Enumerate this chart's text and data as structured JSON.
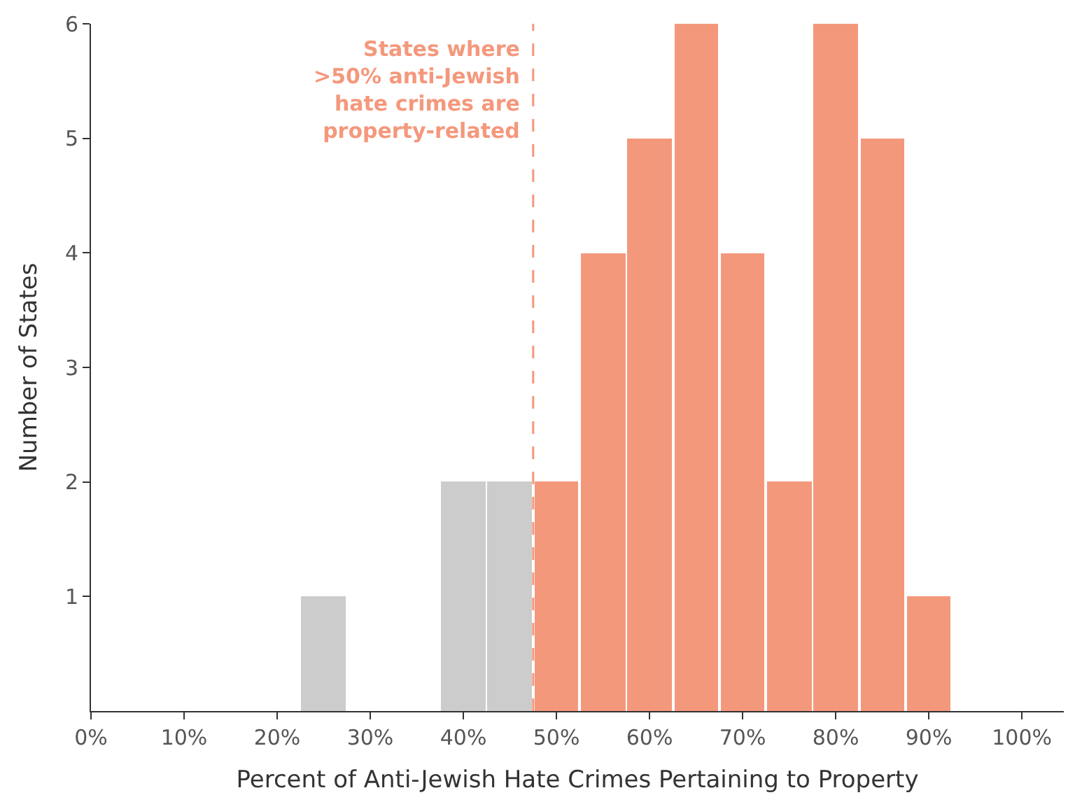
{
  "chart_data": {
    "type": "histogram",
    "xlabel": "Percent of Anti-Jewish Hate Crimes Pertaining to Property",
    "ylabel": "Number of States",
    "bins": [
      22.5,
      27.5,
      32.5,
      37.5,
      42.5,
      47.5,
      52.5,
      57.5,
      62.5,
      67.5,
      72.5,
      77.5,
      82.5,
      87.5,
      92.5
    ],
    "values": [
      1,
      0,
      0,
      2,
      2,
      2,
      4,
      5,
      6,
      4,
      2,
      6,
      5,
      1
    ],
    "colors": [
      "#cccccc",
      "#cccccc",
      "#cccccc",
      "#cccccc",
      "#cccccc",
      "#f4987c",
      "#f4987c",
      "#f4987c",
      "#f4987c",
      "#f4987c",
      "#f4987c",
      "#f4987c",
      "#f4987c",
      "#f4987c"
    ],
    "xlim": [
      0,
      104.5
    ],
    "xticks": [
      {
        "value": 0,
        "label": "0%"
      },
      {
        "value": 10,
        "label": "10%"
      },
      {
        "value": 20,
        "label": "20%"
      },
      {
        "value": 30,
        "label": "30%"
      },
      {
        "value": 40,
        "label": "40%"
      },
      {
        "value": 50,
        "label": "50%"
      },
      {
        "value": 60,
        "label": "60%"
      },
      {
        "value": 70,
        "label": "70%"
      },
      {
        "value": 80,
        "label": "80%"
      },
      {
        "value": 90,
        "label": "90%"
      },
      {
        "value": 100,
        "label": "100%"
      }
    ],
    "ylim": [
      0,
      6
    ],
    "yticks": [
      1,
      2,
      3,
      4,
      5,
      6
    ],
    "ref_lines": [
      {
        "axis": "x",
        "value": 47.5,
        "label": "States where\n>50% anti-Jewish\nhate crimes are\nproperty-related",
        "color": "#f4987c",
        "line_style": "dashed"
      }
    ]
  }
}
